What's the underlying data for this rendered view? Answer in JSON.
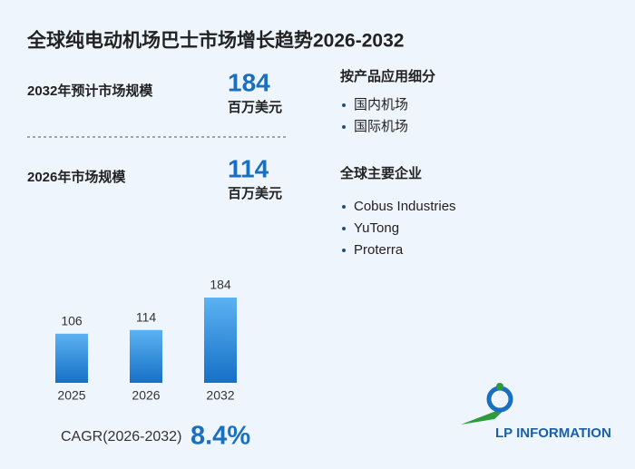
{
  "header": {
    "title": "全球纯电动机场巴士市场增长趋势2026-2032"
  },
  "stats": [
    {
      "label": "2032年预计市场规模",
      "value": 184,
      "unit": "百万美元"
    },
    {
      "label": "2026年市场规模",
      "value": 114,
      "unit": "百万美元"
    }
  ],
  "segments": {
    "title": "按产品应用细分",
    "items": [
      "国内机场",
      "国际机场"
    ]
  },
  "companies": {
    "title": "全球主要企业",
    "items": [
      "Cobus Industries",
      "YuTong",
      "Proterra"
    ]
  },
  "chart_data": {
    "type": "bar",
    "categories": [
      "2025",
      "2026",
      "2032"
    ],
    "values": [
      106,
      114,
      184
    ],
    "color": "#2a86d6"
  },
  "cagr": {
    "label": "CAGR(2026-2032)",
    "value": "8.4%"
  },
  "logo": {
    "text": "LP INFORMATION"
  }
}
